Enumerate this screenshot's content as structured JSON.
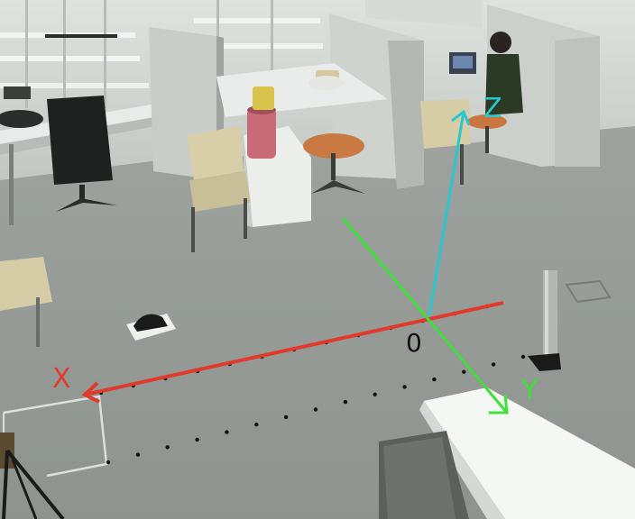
{
  "image": {
    "kind": "lab-floor-photo-with-coordinate-axes",
    "axes": {
      "x": {
        "label": "X",
        "color": "#e03a2c"
      },
      "y": {
        "label": "Y",
        "color": "#3fe03a"
      },
      "z": {
        "label": "Z",
        "color": "#28c8cf"
      },
      "origin": {
        "label": "0",
        "color": "#111111"
      }
    }
  }
}
